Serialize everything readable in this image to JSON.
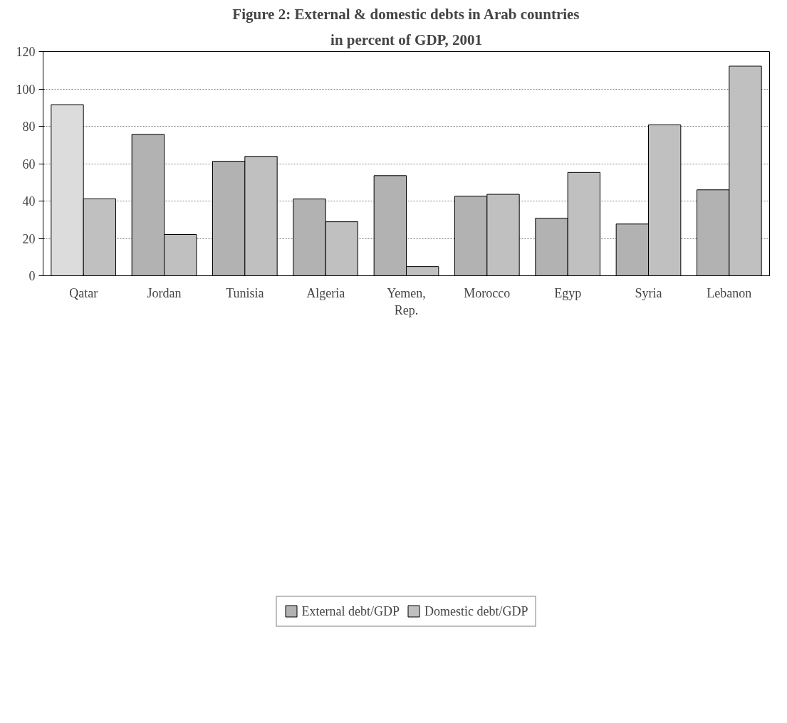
{
  "chart_data": {
    "type": "bar",
    "title": "Figure 2: External & domestic debts in Arab countries",
    "subtitle": "in percent of GDP, 2001",
    "categories": [
      "Qatar",
      "Jordan",
      "Tunisia",
      "Algeria",
      "Yemen, Rep.",
      "Morocco",
      "Egyp",
      "Syria",
      "Lebanon"
    ],
    "series": [
      {
        "name": "External debt/GDP",
        "color": "#b2b2b2",
        "colors": [
          "#dcdcdc",
          "#b2b2b2",
          "#b2b2b2",
          "#b2b2b2",
          "#b2b2b2",
          "#b2b2b2",
          "#b2b2b2",
          "#b2b2b2",
          "#b2b2b2"
        ],
        "values": [
          91.6,
          75.7,
          61.3,
          41.1,
          53.6,
          42.6,
          30.8,
          27.7,
          46.0
        ]
      },
      {
        "name": "Domestic debt/GDP",
        "color": "#c0c0c0",
        "values": [
          41.2,
          22.1,
          63.9,
          28.9,
          4.9,
          43.6,
          55.3,
          80.8,
          112.2
        ]
      }
    ],
    "ylim": [
      0,
      120
    ],
    "yticks": [
      0,
      20,
      40,
      60,
      80,
      100,
      120
    ],
    "grid": "y",
    "legend": "bottom"
  }
}
